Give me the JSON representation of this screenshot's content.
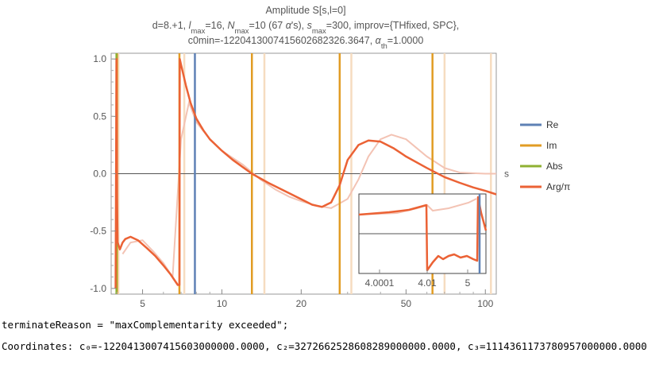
{
  "title": {
    "line1": "Amplitude S[s,l=0]",
    "line2_parts": [
      "d=8.+1, ",
      "l",
      "max",
      "=16, ",
      "N",
      "max",
      "=10 (67 ",
      "α",
      "'s), ",
      "s",
      "max",
      "=300, improv={THfixed, SPC},"
    ],
    "line3_parts": [
      "c0min=-122041300741560268232​6.3647, ",
      "α",
      "th",
      "=1.0000"
    ]
  },
  "chart_data": {
    "type": "line",
    "title": "Amplitude S[s,l=0]",
    "xlabel": "s",
    "ylabel": "",
    "x_scale": "log",
    "xlim": [
      3.8,
      110
    ],
    "ylim": [
      -1.05,
      1.05
    ],
    "x_ticks": [
      5,
      10,
      20,
      50,
      100
    ],
    "x_tick_labels": [
      "5",
      "10",
      "20",
      "50",
      "100"
    ],
    "y_ticks": [
      -1.0,
      -0.5,
      0.0,
      0.5,
      1.0
    ],
    "y_tick_labels": [
      "-1.0",
      "-0.5",
      "0.0",
      "0.5",
      "1.0"
    ],
    "legend_position": "right",
    "series": [
      {
        "name": "Re",
        "color": "#5e81b5",
        "kind": "vertical_lines",
        "x": [
          7.9
        ]
      },
      {
        "name": "Im",
        "color": "#e19c24",
        "kind": "vertical_lines",
        "x": [
          4.0,
          6.9,
          13.0,
          28.0,
          63.0
        ]
      },
      {
        "name": "Abs",
        "color": "#8fb032",
        "kind": "vertical_lines",
        "x": [
          3.98
        ]
      },
      {
        "name": "Arg/π",
        "color": "#eb6235",
        "kind": "curve",
        "x": [
          3.95,
          3.98,
          4.0,
          4.02,
          4.05,
          4.1,
          4.2,
          4.3,
          4.5,
          4.8,
          5.2,
          5.6,
          6.0,
          6.4,
          6.8,
          6.9,
          6.92,
          7.0,
          7.3,
          7.6,
          8.0,
          8.5,
          9.0,
          10.0,
          11.0,
          13.0,
          15.0,
          18.0,
          22.0,
          24.0,
          26.0,
          28.0,
          30.0,
          33.0,
          36.0,
          40.0,
          45.0,
          50.0,
          60.0,
          70.0,
          80.0,
          90.0,
          100.0,
          110.0
        ],
        "y": [
          -1.0,
          1.0,
          -0.2,
          -0.6,
          -0.62,
          -0.66,
          -0.6,
          -0.57,
          -0.55,
          -0.58,
          -0.65,
          -0.72,
          -0.8,
          -0.88,
          -0.97,
          -0.97,
          1.0,
          0.95,
          0.77,
          0.62,
          0.48,
          0.38,
          0.3,
          0.2,
          0.12,
          0.0,
          -0.08,
          -0.17,
          -0.27,
          -0.29,
          -0.25,
          -0.1,
          0.12,
          0.25,
          0.29,
          0.28,
          0.22,
          0.15,
          0.05,
          -0.03,
          -0.08,
          -0.12,
          -0.15,
          -0.18
        ]
      },
      {
        "name": "Arg/π (faint)",
        "color": "#f3c3b4",
        "kind": "curve_faint",
        "x": [
          4.2,
          4.5,
          5.0,
          5.5,
          6.0,
          6.5,
          7.0,
          7.5,
          8.0,
          9.0,
          10.0,
          12.0,
          14.0,
          16.0,
          18.0,
          20.0,
          23.0,
          26.0,
          30.0,
          33.0,
          36.0,
          40.0,
          44.0,
          50.0,
          60.0,
          70.0,
          80.0,
          100.0,
          110.0
        ],
        "y": [
          -0.7,
          -0.6,
          -0.58,
          -0.68,
          -0.78,
          -0.9,
          0.3,
          0.62,
          0.45,
          0.3,
          0.2,
          0.08,
          -0.05,
          -0.14,
          -0.2,
          -0.24,
          -0.28,
          -0.3,
          -0.22,
          -0.05,
          0.15,
          0.3,
          0.34,
          0.3,
          0.15,
          0.05,
          0.01,
          0.0,
          0.0
        ]
      },
      {
        "name": "faint vertical lines",
        "color": "#f6dcc0",
        "kind": "vertical_lines_faint",
        "x": [
          4.05,
          7.2,
          14.5,
          31.0,
          70.0,
          105.0
        ]
      }
    ],
    "inset": {
      "tick_labels": [
        "4.0001",
        "4.01",
        "5"
      ]
    }
  },
  "legend": [
    {
      "label": "Re",
      "color": "#5e81b5"
    },
    {
      "label": "Im",
      "color": "#e19c24"
    },
    {
      "label": "Abs",
      "color": "#8fb032"
    },
    {
      "label": "Arg/π",
      "color": "#eb6235"
    }
  ],
  "output": {
    "terminate_line": "terminateReason = \"maxComplementarity exceeded\";",
    "coordinates_line": "Coordinates: c₀=-1220413007415603000000.0000, c₂=3272662528608289000000.0000, c₃=1114361173780957000000.0000"
  }
}
